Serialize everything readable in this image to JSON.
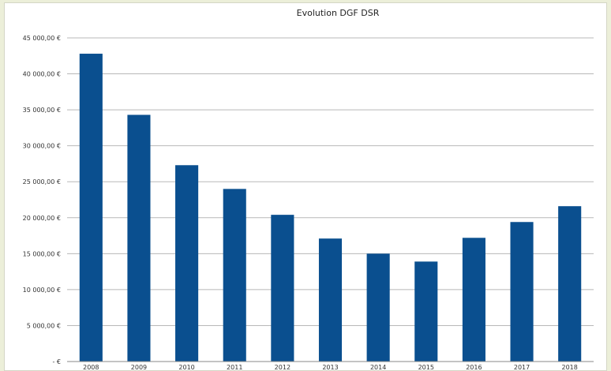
{
  "chart_data": {
    "type": "bar",
    "title": "Evolution DGF DSR",
    "categories": [
      "2008",
      "2009",
      "2010",
      "2011",
      "2012",
      "2013",
      "2014",
      "2015",
      "2016",
      "2017",
      "2018"
    ],
    "values": [
      42800,
      34300,
      27300,
      24000,
      20400,
      17100,
      15000,
      13900,
      17200,
      19400,
      21600
    ],
    "ylim": [
      0,
      45000
    ],
    "ytick_values": [
      0,
      5000,
      10000,
      15000,
      20000,
      25000,
      30000,
      35000,
      40000,
      45000
    ],
    "yticks": [
      "- €",
      "5 000,00 €",
      "10 000,00 €",
      "15 000,00 €",
      "20 000,00 €",
      "25 000,00 €",
      "30 000,00 €",
      "35 000,00 €",
      "40 000,00 €",
      "45 000,00 €"
    ],
    "xlabel": "",
    "ylabel": "",
    "grid": true,
    "bar_color": "#0a4f8f",
    "grid_color": "#b8b8b8"
  }
}
